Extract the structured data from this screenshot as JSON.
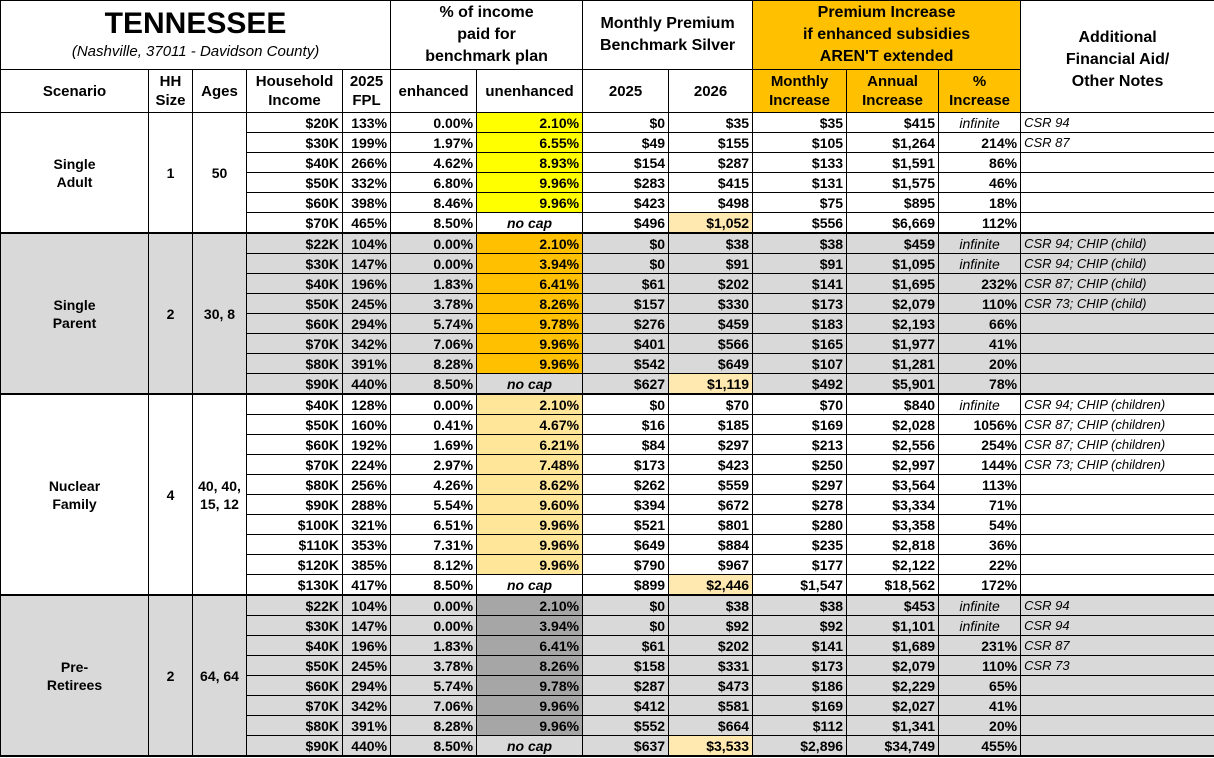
{
  "header": {
    "title": "TENNESSEE",
    "subtitle": "(Nashville, 37011 - Davidson County)",
    "income_pct": "% of income\npaid for\nbenchmark plan",
    "premium": "Monthly Premium\nBenchmark Silver",
    "increase": "Premium Increase\nif enhanced subsidies\nAREN'T extended",
    "notes": "Additional\nFinancial Aid/\nOther Notes",
    "columns": [
      "Scenario",
      "HH\nSize",
      "Ages",
      "Household\nIncome",
      "2025\nFPL",
      "enhanced",
      "unenhanced",
      "2025",
      "2026",
      "Monthly\nIncrease",
      "Annual\nIncrease",
      "%\nIncrease"
    ]
  },
  "groups": [
    {
      "scenario": "Single\nAdult",
      "hh_size": "1",
      "ages": "50",
      "rows": [
        [
          "$20K",
          "133%",
          "0.00%",
          "2.10%",
          "$0",
          "$35",
          "$35",
          "$415",
          "infinite",
          "CSR 94"
        ],
        [
          "$30K",
          "199%",
          "1.97%",
          "6.55%",
          "$49",
          "$155",
          "$105",
          "$1,264",
          "214%",
          "CSR 87"
        ],
        [
          "$40K",
          "266%",
          "4.62%",
          "8.93%",
          "$154",
          "$287",
          "$133",
          "$1,591",
          "86%"
        ],
        [
          "$50K",
          "332%",
          "6.80%",
          "9.96%",
          "$283",
          "$415",
          "$131",
          "$1,575",
          "46%"
        ],
        [
          "$60K",
          "398%",
          "8.46%",
          "9.96%",
          "$423",
          "$498",
          "$75",
          "$895",
          "18%"
        ],
        [
          "$70K",
          "465%",
          "8.50%",
          "no cap",
          "$496",
          "$1,052",
          "$556",
          "$6,669",
          "112%"
        ]
      ]
    },
    {
      "scenario": "Single\nParent",
      "hh_size": "2",
      "ages": "30, 8",
      "rows": [
        [
          "$22K",
          "104%",
          "0.00%",
          "2.10%",
          "$0",
          "$38",
          "$38",
          "$459",
          "infinite",
          "CSR 94; CHIP (child)"
        ],
        [
          "$30K",
          "147%",
          "0.00%",
          "3.94%",
          "$0",
          "$91",
          "$91",
          "$1,095",
          "infinite",
          "CSR 94; CHIP (child)"
        ],
        [
          "$40K",
          "196%",
          "1.83%",
          "6.41%",
          "$61",
          "$202",
          "$141",
          "$1,695",
          "232%",
          "CSR 87; CHIP (child)"
        ],
        [
          "$50K",
          "245%",
          "3.78%",
          "8.26%",
          "$157",
          "$330",
          "$173",
          "$2,079",
          "110%",
          "CSR 73; CHIP (child)"
        ],
        [
          "$60K",
          "294%",
          "5.74%",
          "9.78%",
          "$276",
          "$459",
          "$183",
          "$2,193",
          "66%"
        ],
        [
          "$70K",
          "342%",
          "7.06%",
          "9.96%",
          "$401",
          "$566",
          "$165",
          "$1,977",
          "41%"
        ],
        [
          "$80K",
          "391%",
          "8.28%",
          "9.96%",
          "$542",
          "$649",
          "$107",
          "$1,281",
          "20%"
        ],
        [
          "$90K",
          "440%",
          "8.50%",
          "no cap",
          "$627",
          "$1,119",
          "$492",
          "$5,901",
          "78%"
        ]
      ]
    },
    {
      "scenario": "Nuclear\nFamily",
      "hh_size": "4",
      "ages": "40, 40,\n15, 12",
      "rows": [
        [
          "$40K",
          "128%",
          "0.00%",
          "2.10%",
          "$0",
          "$70",
          "$70",
          "$840",
          "infinite",
          "CSR 94; CHIP (children)"
        ],
        [
          "$50K",
          "160%",
          "0.41%",
          "4.67%",
          "$16",
          "$185",
          "$169",
          "$2,028",
          "1056%",
          "CSR 87; CHIP (children)"
        ],
        [
          "$60K",
          "192%",
          "1.69%",
          "6.21%",
          "$84",
          "$297",
          "$213",
          "$2,556",
          "254%",
          "CSR 87; CHIP (children)"
        ],
        [
          "$70K",
          "224%",
          "2.97%",
          "7.48%",
          "$173",
          "$423",
          "$250",
          "$2,997",
          "144%",
          "CSR 73; CHIP (children)"
        ],
        [
          "$80K",
          "256%",
          "4.26%",
          "8.62%",
          "$262",
          "$559",
          "$297",
          "$3,564",
          "113%"
        ],
        [
          "$90K",
          "288%",
          "5.54%",
          "9.60%",
          "$394",
          "$672",
          "$278",
          "$3,334",
          "71%"
        ],
        [
          "$100K",
          "321%",
          "6.51%",
          "9.96%",
          "$521",
          "$801",
          "$280",
          "$3,358",
          "54%"
        ],
        [
          "$110K",
          "353%",
          "7.31%",
          "9.96%",
          "$649",
          "$884",
          "$235",
          "$2,818",
          "36%"
        ],
        [
          "$120K",
          "385%",
          "8.12%",
          "9.96%",
          "$790",
          "$967",
          "$177",
          "$2,122",
          "22%"
        ],
        [
          "$130K",
          "417%",
          "8.50%",
          "no cap",
          "$899",
          "$2,446",
          "$1,547",
          "$18,562",
          "172%"
        ]
      ]
    },
    {
      "scenario": "Pre-\nRetirees",
      "hh_size": "2",
      "ages": "64, 64",
      "rows": [
        [
          "$22K",
          "104%",
          "0.00%",
          "2.10%",
          "$0",
          "$38",
          "$38",
          "$453",
          "infinite",
          "CSR 94"
        ],
        [
          "$30K",
          "147%",
          "0.00%",
          "3.94%",
          "$0",
          "$92",
          "$92",
          "$1,101",
          "infinite",
          "CSR 94"
        ],
        [
          "$40K",
          "196%",
          "1.83%",
          "6.41%",
          "$61",
          "$202",
          "$141",
          "$1,689",
          "231%",
          "CSR 87"
        ],
        [
          "$50K",
          "245%",
          "3.78%",
          "8.26%",
          "$158",
          "$331",
          "$173",
          "$2,079",
          "110%",
          "CSR 73"
        ],
        [
          "$60K",
          "294%",
          "5.74%",
          "9.78%",
          "$287",
          "$473",
          "$186",
          "$2,229",
          "65%"
        ],
        [
          "$70K",
          "342%",
          "7.06%",
          "9.96%",
          "$412",
          "$581",
          "$169",
          "$2,027",
          "41%"
        ],
        [
          "$80K",
          "391%",
          "8.28%",
          "9.96%",
          "$552",
          "$664",
          "$112",
          "$1,341",
          "20%"
        ],
        [
          "$90K",
          "440%",
          "8.50%",
          "no cap",
          "$637",
          "$3,533",
          "$2,896",
          "$34,749",
          "455%"
        ]
      ]
    }
  ]
}
